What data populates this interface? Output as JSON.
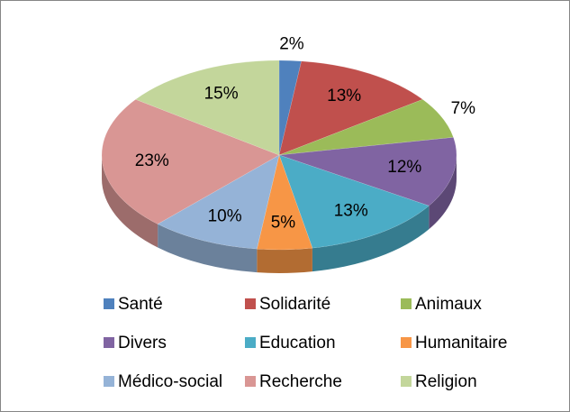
{
  "chart_data": {
    "type": "pie",
    "categories": [
      "Santé",
      "Solidarité",
      "Animaux",
      "Divers",
      "Education",
      "Humanitaire",
      "Médico-social",
      "Recherche",
      "Religion"
    ],
    "values": [
      2,
      13,
      7,
      12,
      13,
      5,
      10,
      23,
      15
    ],
    "value_labels": [
      "2%",
      "13%",
      "7%",
      "12%",
      "13%",
      "5%",
      "10%",
      "23%",
      "15%"
    ],
    "colors": [
      "#4f81bd",
      "#c0504d",
      "#9bbb59",
      "#8064a2",
      "#4bacc6",
      "#f79646",
      "#95b3d7",
      "#d99694",
      "#c3d69b"
    ],
    "legend": "bottom"
  }
}
